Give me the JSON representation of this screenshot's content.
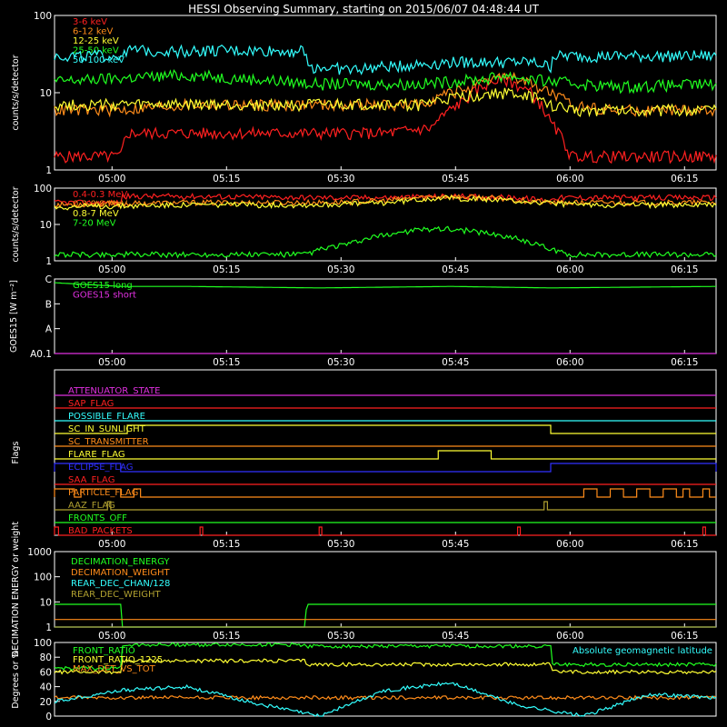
{
  "title": "HESSI Observing Summary, starting on 2015/06/07 04:48:44 UT",
  "colors": {
    "red": "#ff2020",
    "orange": "#ff8c1a",
    "yellow": "#ffff33",
    "green": "#20ff20",
    "cyan": "#33ffff",
    "magenta": "#e030e0",
    "blue": "#3030ff",
    "olive": "#b0a030",
    "white": "#ffffff"
  },
  "chart_data": [
    {
      "type": "line",
      "panel": "lightcurve-low",
      "ylabel": "counts/s/detector",
      "yscale": "log",
      "ylim": [
        1,
        100
      ],
      "y_ticks": [
        "1",
        "10",
        "100"
      ],
      "x_ticks": [
        "05:00",
        "05:15",
        "05:30",
        "05:45",
        "06:00",
        "06:15"
      ],
      "x_units": "minutes since 04:48:44 UT",
      "xlim": [
        0,
        100
      ],
      "series": [
        {
          "name": "3-6 keV",
          "color": "red",
          "x": [
            0,
            10,
            11,
            20,
            40,
            50,
            57,
            62,
            66,
            68,
            72,
            75,
            78,
            85,
            90,
            100
          ],
          "values": [
            1.5,
            1.5,
            3,
            3,
            3,
            3,
            3.5,
            8,
            14,
            15,
            10,
            4,
            1.5,
            1.5,
            1.5,
            1.5
          ]
        },
        {
          "name": "6-12 keV",
          "color": "orange",
          "x": [
            0,
            10,
            20,
            40,
            55,
            60,
            65,
            68,
            70,
            75,
            78,
            85,
            100
          ],
          "values": [
            6,
            6,
            7,
            7,
            7,
            10,
            13,
            17,
            15,
            10,
            7,
            6,
            6
          ]
        },
        {
          "name": "12-25 keV",
          "color": "yellow",
          "x": [
            0,
            20,
            40,
            55,
            62,
            68,
            72,
            75,
            78,
            85,
            100
          ],
          "values": [
            7,
            7,
            7,
            7,
            9,
            10,
            9,
            7,
            6,
            6,
            6
          ]
        },
        {
          "name": "25-50 keV",
          "color": "green",
          "x": [
            0,
            20,
            40,
            55,
            60,
            65,
            68,
            72,
            75,
            80,
            85,
            100
          ],
          "values": [
            14,
            17,
            13,
            13,
            14,
            15,
            17,
            15,
            14,
            13,
            12,
            13
          ]
        },
        {
          "name": "50-100 keV",
          "color": "cyan",
          "x": [
            0,
            10,
            10.1,
            20,
            38,
            38.1,
            45,
            60,
            65,
            72,
            75,
            75.1,
            88,
            100
          ],
          "values": [
            30,
            30,
            35,
            35,
            35,
            22,
            20,
            25,
            25,
            25,
            22,
            30,
            30,
            30
          ]
        }
      ]
    },
    {
      "type": "line",
      "panel": "lightcurve-high",
      "ylabel": "counts/s/detector",
      "yscale": "log",
      "ylim": [
        1,
        100
      ],
      "y_ticks": [
        "1",
        "10",
        "100"
      ],
      "x_ticks": [
        "05:00",
        "05:15",
        "05:30",
        "05:45",
        "06:00",
        "06:15"
      ],
      "x_units": "minutes since 04:48:44 UT",
      "xlim": [
        0,
        100
      ],
      "series": [
        {
          "name": "0.4-0.3 MeV",
          "color": "red",
          "x": [
            0,
            10,
            10.1,
            20,
            40,
            50,
            60,
            70,
            75,
            75.1,
            88,
            100
          ],
          "values": [
            40,
            40,
            60,
            60,
            55,
            55,
            60,
            55,
            45,
            55,
            55,
            55
          ]
        },
        {
          "name": "0.3-0.8 MeV",
          "color": "orange",
          "x": [
            0,
            20,
            40,
            50,
            58,
            65,
            75,
            80,
            100
          ],
          "values": [
            35,
            40,
            40,
            45,
            60,
            55,
            40,
            40,
            40
          ]
        },
        {
          "name": "0.8-7 MeV",
          "color": "yellow",
          "x": [
            0,
            20,
            40,
            50,
            58,
            65,
            75,
            80,
            100
          ],
          "values": [
            30,
            35,
            35,
            40,
            55,
            50,
            38,
            35,
            35
          ]
        },
        {
          "name": "7-20 MeV",
          "color": "green",
          "x": [
            0,
            38,
            40,
            45,
            52,
            58,
            65,
            70,
            75,
            78,
            100
          ],
          "values": [
            1.5,
            1.5,
            2,
            3,
            6,
            8,
            6,
            4,
            2,
            1.5,
            1.5
          ]
        }
      ]
    },
    {
      "type": "line",
      "panel": "goes",
      "ylabel": "GOES15 [W m⁻²]",
      "y_ticks": [
        "A0.1",
        "A",
        "B",
        "C"
      ],
      "x_ticks": [
        "05:00",
        "05:15",
        "05:30",
        "05:45",
        "06:00",
        "06:15"
      ],
      "xlim": [
        0,
        100
      ],
      "series": [
        {
          "name": "GOES15 long",
          "color": "green",
          "x": [
            0,
            10,
            20,
            40,
            60,
            75,
            100
          ],
          "values": [
            0.95,
            0.9,
            0.9,
            0.88,
            0.9,
            0.88,
            0.9
          ]
        },
        {
          "name": "GOES15 short",
          "color": "magenta",
          "x": [
            0,
            100
          ],
          "values": [
            0.0,
            0.0
          ]
        }
      ]
    },
    {
      "type": "line",
      "panel": "flags",
      "ylabel": "Flags",
      "x_ticks": [
        "05:00",
        "05:15",
        "05:30",
        "05:45",
        "06:00",
        "06:15"
      ],
      "xlim": [
        0,
        100
      ],
      "flags": [
        {
          "name": "ATTENUATOR_STATE",
          "color": "magenta",
          "on": []
        },
        {
          "name": "SAP_FLAG",
          "color": "red",
          "on": []
        },
        {
          "name": "POSSIBLE_FLARE",
          "color": "cyan",
          "on": []
        },
        {
          "name": "SC_IN_SUNLIGHT",
          "color": "yellow",
          "on": [
            [
              11,
              75
            ]
          ]
        },
        {
          "name": "SC_TRANSMITTER",
          "color": "orange",
          "on": []
        },
        {
          "name": "FLARE_FLAG",
          "color": "yellow",
          "on": [
            [
              58,
              66
            ]
          ]
        },
        {
          "name": "ECLIPSE_FLAG",
          "color": "blue",
          "on": [
            [
              0,
              10
            ],
            [
              75,
              100
            ]
          ]
        },
        {
          "name": "SAA_FLAG",
          "color": "red",
          "on": []
        },
        {
          "name": "PARTICLE_FLAG",
          "color": "orange",
          "on": [
            [
              0,
              3
            ],
            [
              4,
              10
            ],
            [
              12,
              13
            ],
            [
              80,
              82
            ],
            [
              84,
              86
            ],
            [
              88,
              90
            ],
            [
              92,
              94
            ],
            [
              95,
              96
            ],
            [
              98,
              99
            ]
          ]
        },
        {
          "name": "AAZ_FLAG",
          "color": "olive",
          "on": [
            [
              8,
              8.5
            ],
            [
              74,
              74.5
            ]
          ]
        },
        {
          "name": "FRONTS_OFF",
          "color": "green",
          "on": []
        },
        {
          "name": "BAD_PACKETS",
          "color": "red",
          "on": [
            [
              0,
              0.6
            ],
            [
              22,
              22.4
            ],
            [
              40,
              40.4
            ],
            [
              70,
              70.4
            ],
            [
              98,
              98.4
            ]
          ]
        }
      ]
    },
    {
      "type": "line",
      "panel": "decimation",
      "ylabel": "DECIMATION ENERGY or weight",
      "yscale": "log",
      "ylim": [
        1,
        1000
      ],
      "y_ticks": [
        "1",
        "10",
        "100",
        "1000"
      ],
      "x_ticks": [
        "05:00",
        "05:15",
        "05:30",
        "05:45",
        "06:00",
        "06:15"
      ],
      "xlim": [
        0,
        100
      ],
      "series": [
        {
          "name": "DECIMATION_ENERGY",
          "color": "green",
          "x": [
            0,
            10,
            10.1,
            38,
            38.1,
            75,
            75.1,
            100
          ],
          "values": [
            8,
            8,
            1,
            1,
            8,
            8,
            8,
            8
          ]
        },
        {
          "name": "DECIMATION_WEIGHT",
          "color": "orange",
          "x": [
            0,
            100
          ],
          "values": [
            2,
            2
          ]
        },
        {
          "name": "REAR_DEC_CHAN/128",
          "color": "cyan",
          "x": [
            0,
            100
          ],
          "values": [
            1,
            1
          ]
        },
        {
          "name": "REAR_DEC_WEIGHT",
          "color": "olive",
          "x": [
            0,
            100
          ],
          "values": [
            1,
            1
          ]
        }
      ]
    },
    {
      "type": "line",
      "panel": "ratios",
      "ylabel": "Degrees or %",
      "ylim": [
        0,
        100
      ],
      "y_ticks": [
        "0",
        "20",
        "40",
        "60",
        "80",
        "100"
      ],
      "xlim": [
        0,
        100
      ],
      "series": [
        {
          "name": "FRONT_RATIO",
          "color": "green",
          "x": [
            0,
            10,
            10.1,
            38,
            38.1,
            75,
            75.1,
            100
          ],
          "values": [
            65,
            65,
            97,
            97,
            95,
            95,
            70,
            70
          ]
        },
        {
          "name": "FRONT_RATIO_1225",
          "color": "yellow",
          "x": [
            0,
            10,
            10.1,
            38,
            38.1,
            75,
            75.1,
            100
          ],
          "values": [
            60,
            60,
            75,
            75,
            70,
            70,
            60,
            60
          ]
        },
        {
          "name": "MAX_DET_VS_TOT",
          "color": "orange",
          "x": [
            0,
            100
          ],
          "values": [
            25,
            25
          ]
        },
        {
          "name": "Absolute geomagnetic latitude",
          "color": "cyan",
          "x": [
            0,
            10,
            20,
            30,
            40,
            50,
            60,
            70,
            80,
            90,
            100
          ],
          "values": [
            20,
            35,
            40,
            18,
            0,
            35,
            45,
            15,
            0,
            30,
            25
          ]
        }
      ]
    }
  ]
}
